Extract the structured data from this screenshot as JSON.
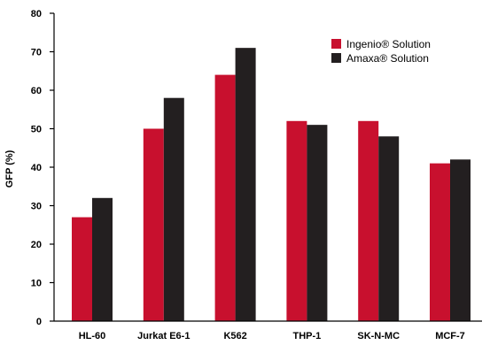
{
  "chart_data": {
    "type": "bar",
    "title": "",
    "xlabel": "",
    "ylabel": "GFP (%)",
    "ylim": [
      0,
      80
    ],
    "yticks": [
      0,
      10,
      20,
      30,
      40,
      50,
      60,
      70,
      80
    ],
    "grid": false,
    "legend_position": "top-right",
    "categories": [
      "HL-60",
      "Jurkat E6-1",
      "K562",
      "THP-1",
      "SK-N-MC",
      "MCF-7"
    ],
    "series": [
      {
        "name": "Ingenio® Solution",
        "color": "#c8102e",
        "values": [
          27,
          50,
          64,
          52,
          52,
          41
        ]
      },
      {
        "name": "Amaxa® Solution",
        "color": "#231f20",
        "values": [
          32,
          58,
          71,
          51,
          48,
          42
        ]
      }
    ]
  }
}
